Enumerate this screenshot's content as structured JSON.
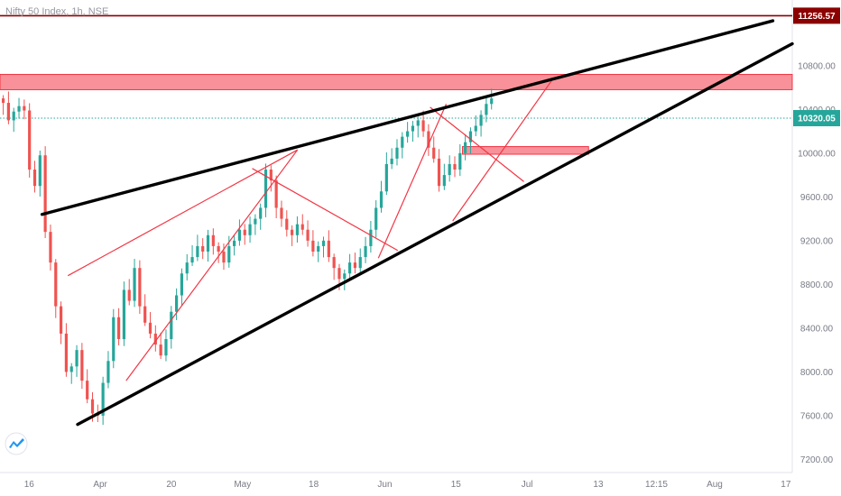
{
  "chart_data": {
    "type": "candlestick",
    "title": "Nifty 50 Index, 1h, NSE",
    "y_ticks": [
      7200,
      7600,
      8000,
      8400,
      8800,
      9200,
      9600,
      10000,
      10400,
      10800
    ],
    "y_tick_labels": [
      "7200.00",
      "7600.00",
      "8000.00",
      "8400.00",
      "8800.00",
      "9200.00",
      "9600.00",
      "10000.00",
      "10400.00",
      "10800.00"
    ],
    "ylim": [
      7080,
      11400
    ],
    "x_ticks": [
      {
        "label": "16",
        "t": 3
      },
      {
        "label": "Apr",
        "t": 14
      },
      {
        "label": "20",
        "t": 25
      },
      {
        "label": "May",
        "t": 36
      },
      {
        "label": "18",
        "t": 47
      },
      {
        "label": "Jun",
        "t": 58
      },
      {
        "label": "15",
        "t": 69
      },
      {
        "label": "Jul",
        "t": 80
      },
      {
        "label": "13",
        "t": 91
      },
      {
        "label": "12:15",
        "t": 100
      },
      {
        "label": "Aug",
        "t": 109
      },
      {
        "label": "17",
        "t": 120
      }
    ],
    "xlim": [
      -1.5,
      121
    ],
    "price_levels": [
      {
        "label": "11256.57",
        "value": 11256.57,
        "color": "#8b0000",
        "style": "solid"
      },
      {
        "label": "10320.05",
        "value": 10320.05,
        "color": "#26a69a",
        "style": "dotted"
      }
    ],
    "zones": [
      {
        "from_t": -1.5,
        "to_t": 121,
        "low": 10580,
        "high": 10720,
        "color": "#f23645"
      },
      {
        "from_t": 70,
        "to_t": 89.5,
        "low": 9990,
        "high": 10060,
        "color": "#f23645"
      }
    ],
    "trendlines_black": [
      {
        "t1": 5,
        "p1": 9440,
        "t2": 118,
        "p2": 11210
      },
      {
        "t1": 10.5,
        "p1": 7520,
        "t2": 121,
        "p2": 11000
      }
    ],
    "trendlines_red": [
      {
        "t1": 9,
        "p1": 8880,
        "t2": 44.5,
        "p2": 10030
      },
      {
        "t1": 18,
        "p1": 7920,
        "t2": 44.5,
        "p2": 10030
      },
      {
        "t1": 37.5,
        "p1": 9860,
        "t2": 60,
        "p2": 9110
      },
      {
        "t1": 57,
        "p1": 9040,
        "t2": 67.5,
        "p2": 10450
      },
      {
        "t1": 65,
        "p1": 10420,
        "t2": 79.5,
        "p2": 9740
      },
      {
        "t1": 68.5,
        "p1": 9380,
        "t2": 84,
        "p2": 10680
      }
    ],
    "candles_close": [
      10460,
      10300,
      10380,
      10430,
      10390,
      9850,
      9700,
      9980,
      9280,
      9000,
      8600,
      8350,
      8000,
      8050,
      8200,
      7920,
      7750,
      7620,
      7600,
      7900,
      8100,
      8500,
      8300,
      8750,
      8650,
      8950,
      8600,
      8450,
      8350,
      8250,
      8150,
      8300,
      8550,
      8700,
      8900,
      9000,
      9050,
      9150,
      9100,
      9250,
      9150,
      9100,
      9000,
      9150,
      9200,
      9300,
      9250,
      9350,
      9400,
      9500,
      9850,
      9750,
      9500,
      9400,
      9300,
      9250,
      9350,
      9300,
      9200,
      9100,
      9150,
      9200,
      9050,
      8950,
      8850,
      8900,
      9000,
      8950,
      9050,
      9150,
      9300,
      9500,
      9650,
      9900,
      9950,
      10050,
      10150,
      10200,
      10250,
      10300,
      10200,
      10050,
      9950,
      9700,
      9800,
      9900,
      9850,
      10000,
      10100,
      10200,
      10250,
      10350,
      10450,
      10500
    ]
  }
}
